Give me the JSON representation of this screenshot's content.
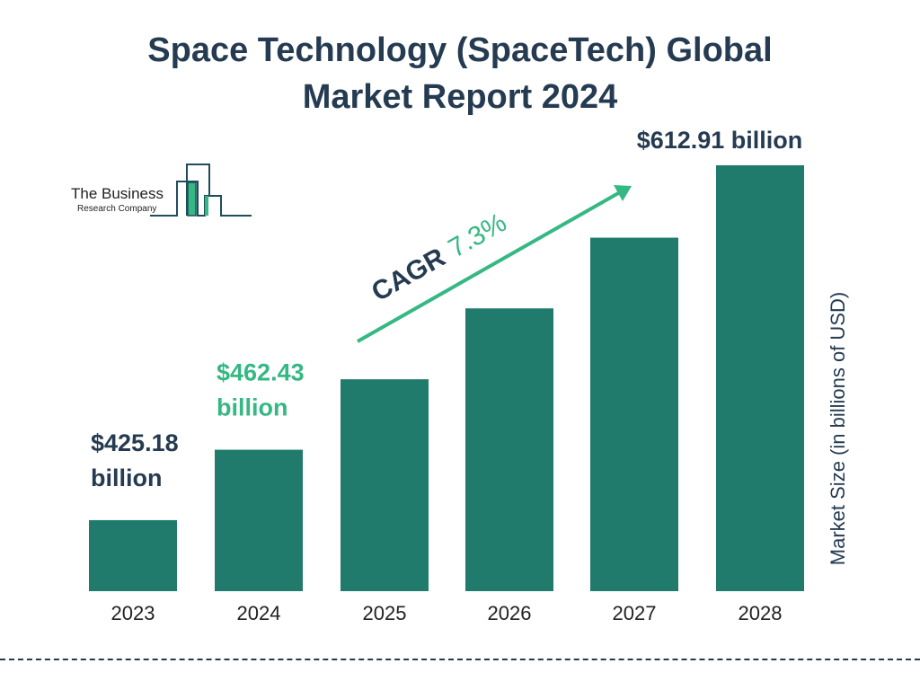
{
  "title_line1": "Space Technology (SpaceTech) Global",
  "title_line2": "Market Report 2024",
  "logo": {
    "line1": "The Business",
    "line2": "Research Company"
  },
  "colors": {
    "bar": "#217b6c",
    "accent": "#35b883",
    "text": "#253b52"
  },
  "chart_data": {
    "type": "bar",
    "title": "Space Technology (SpaceTech) Global Market Report 2024",
    "categories": [
      "2023",
      "2024",
      "2025",
      "2026",
      "2027",
      "2028"
    ],
    "values": [
      425.18,
      462.43,
      499.7,
      537.2,
      574.6,
      612.91
    ],
    "data_labels": [
      {
        "index": 0,
        "line1": "$425.18",
        "line2": "billion",
        "color": "#253b52"
      },
      {
        "index": 1,
        "line1": "$462.43",
        "line2": "billion",
        "color": "#35b883"
      },
      {
        "index": 5,
        "line1": "$612.91 billion",
        "line2": "",
        "color": "#253b52"
      }
    ],
    "ylabel": "Market Size (in billions of USD)",
    "xlabel": "",
    "annotation": {
      "prefix": "CAGR",
      "value": "7.3%"
    },
    "grid": false,
    "legend": "none"
  }
}
